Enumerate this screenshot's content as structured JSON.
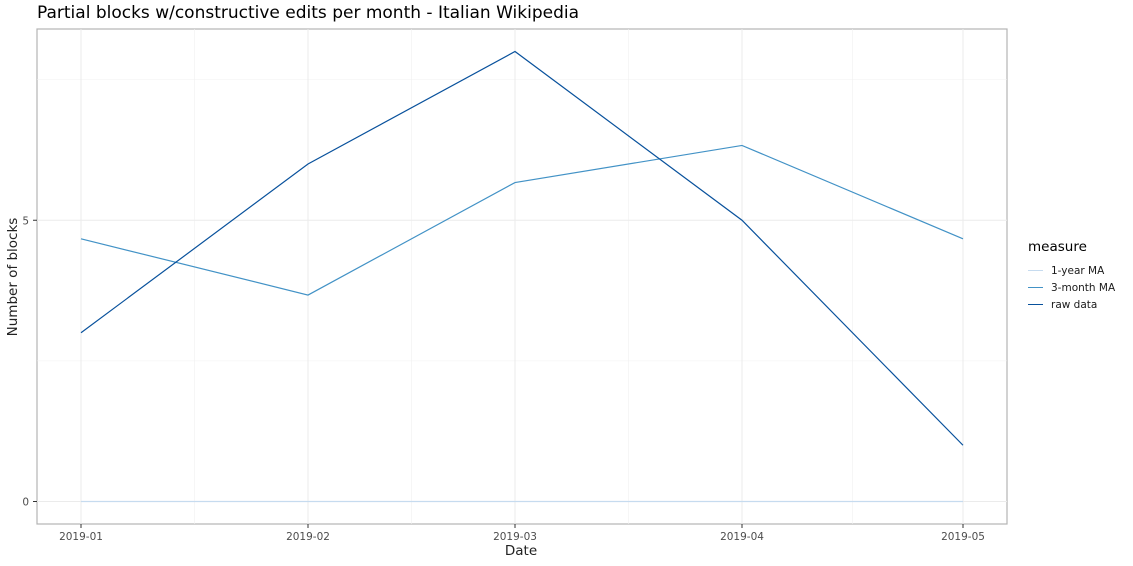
{
  "chart_data": {
    "type": "line",
    "title": "Partial blocks w/constructive edits per month - Italian Wikipedia",
    "xlabel": "Date",
    "ylabel": "Number of blocks",
    "x": [
      "2019-01",
      "2019-02",
      "2019-03",
      "2019-04",
      "2019-05"
    ],
    "x_tick_labels": [
      "2019-01",
      "2019-02",
      "2019-03",
      "2019-04",
      "2019-05"
    ],
    "y_ticks": [
      0,
      5
    ],
    "ylim": [
      -0.4,
      8.4
    ],
    "grid": true,
    "legend": {
      "title": "measure",
      "placement": "right"
    },
    "series": [
      {
        "name": "1-year MA",
        "color": "#c6dbef",
        "values": [
          0,
          0,
          0,
          0,
          0
        ]
      },
      {
        "name": "3-month MA",
        "color": "#4292c6",
        "values": [
          4.67,
          3.67,
          5.67,
          6.33,
          4.67
        ]
      },
      {
        "name": "raw data",
        "color": "#08519c",
        "values": [
          3,
          6,
          8,
          5,
          1
        ]
      }
    ]
  }
}
